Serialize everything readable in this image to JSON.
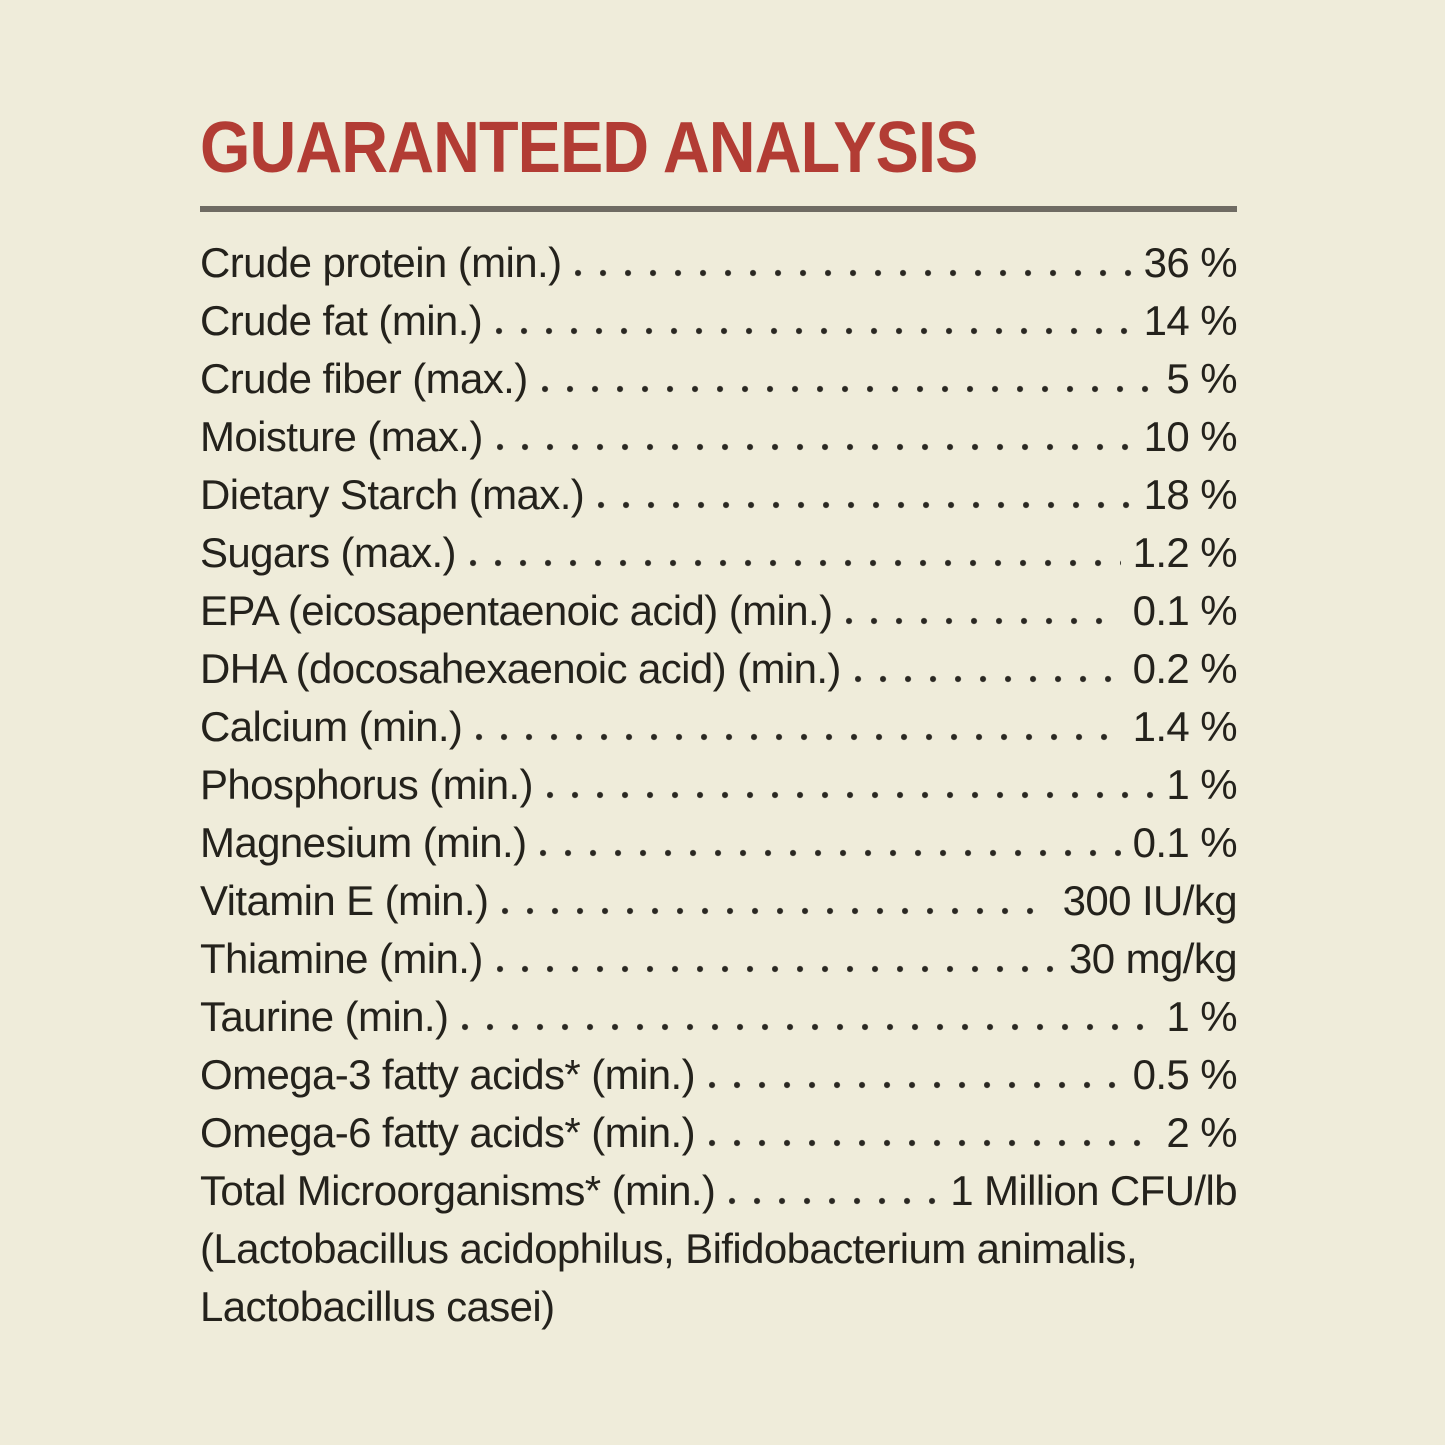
{
  "page": {
    "background_color": "#EFECDA",
    "text_color": "#24221C"
  },
  "header": {
    "title": "GUARANTEED ANALYSIS",
    "title_color": "#B23C34",
    "rule_color": "#6F6B63"
  },
  "analysis_table": {
    "rows": [
      {
        "label": "Crude protein (min.)",
        "value": "36 %"
      },
      {
        "label": "Crude fat (min.)",
        "value": "14 %"
      },
      {
        "label": "Crude fiber (max.)",
        "value": "5 %"
      },
      {
        "label": "Moisture (max.)",
        "value": "10 %"
      },
      {
        "label": "Dietary Starch (max.)",
        "value": "18 %"
      },
      {
        "label": "Sugars (max.)",
        "value": "1.2 %"
      },
      {
        "label": "EPA (eicosapentaenoic acid) (min.)",
        "value": "0.1 %"
      },
      {
        "label": "DHA (docosahexaenoic acid) (min.)",
        "value": "0.2 %"
      },
      {
        "label": "Calcium (min.)",
        "value": "1.4 %"
      },
      {
        "label": "Phosphorus (min.)",
        "value": "1 %"
      },
      {
        "label": "Magnesium (min.)",
        "value": "0.1 %"
      },
      {
        "label": "Vitamin E (min.)",
        "value": "300 IU/kg"
      },
      {
        "label": "Thiamine (min.)",
        "value": "30 mg/kg"
      },
      {
        "label": "Taurine (min.)",
        "value": "1 %"
      },
      {
        "label": "Omega-3 fatty acids* (min.)",
        "value": "0.5 %"
      },
      {
        "label": "Omega-6 fatty acids* (min.)",
        "value": "2 %"
      },
      {
        "label": "Total Microorganisms* (min.)",
        "value": "1 Million CFU/lb"
      }
    ],
    "continuation_lines": [
      "(Lactobacillus acidophilus, Bifidobacterium animalis,",
      "Lactobacillus casei)"
    ]
  }
}
